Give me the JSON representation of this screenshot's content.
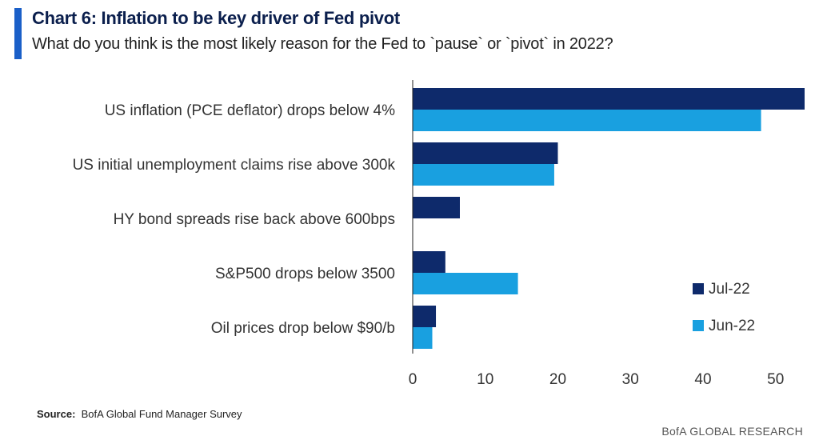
{
  "header": {
    "title": "Chart 6: Inflation to be key driver of Fed pivot",
    "subtitle": "What do you think is the most likely reason for the Fed to `pause` or `pivot` in 2022?"
  },
  "footer": {
    "source_label": "Source:",
    "source_text": "BofA Global Fund Manager Survey",
    "brand": "BofA GLOBAL RESEARCH"
  },
  "colors": {
    "accent": "#1a5fc8",
    "jul": "#0e2a6b",
    "jun": "#19a0e0"
  },
  "chart_data": {
    "type": "bar",
    "orientation": "horizontal",
    "categories": [
      "US inflation (PCE deflator) drops below 4%",
      "US initial unemployment claims rise above 300k",
      "HY bond spreads rise back above 600bps",
      "S&P500 drops below 3500",
      "Oil prices drop below $90/b"
    ],
    "series": [
      {
        "name": "Jul-22",
        "values": [
          54,
          20,
          6.5,
          4.5,
          3.2
        ]
      },
      {
        "name": "Jun-22",
        "values": [
          48,
          19.5,
          0,
          14.5,
          2.7
        ]
      }
    ],
    "xlim": [
      0,
      54
    ],
    "xticks": [
      0,
      10,
      20,
      30,
      40,
      50
    ],
    "grid": false,
    "legend_position": "bottom-right"
  }
}
